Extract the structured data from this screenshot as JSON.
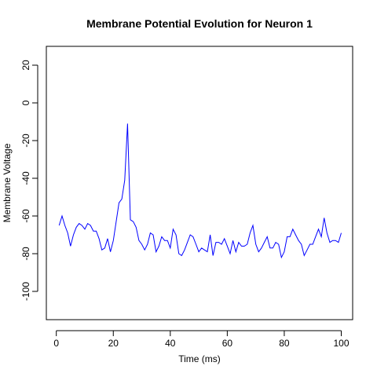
{
  "chart_data": {
    "type": "line",
    "title": "Membrane Potential Evolution for Neuron 1",
    "xlabel": "Time (ms)",
    "ylabel": "Membrane Voltage",
    "xlim": [
      -3.5,
      104
    ],
    "ylim": [
      -115,
      30
    ],
    "xticks": [
      0,
      20,
      40,
      60,
      80,
      100
    ],
    "yticks": [
      20,
      0,
      -20,
      -40,
      -60,
      -80,
      -100
    ],
    "grid": false,
    "line_color": "#0000ff",
    "series": [
      {
        "x": [
          1,
          2,
          3,
          4,
          5,
          6,
          7,
          8,
          9,
          10,
          11,
          12,
          13,
          14,
          15,
          16,
          17,
          18,
          19,
          20,
          21,
          22,
          23,
          24,
          25,
          26,
          27,
          28,
          29,
          30,
          31,
          32,
          33,
          34,
          35,
          36,
          37,
          38,
          39,
          40,
          41,
          42,
          43,
          44,
          45,
          46,
          47,
          48,
          49,
          50,
          51,
          52,
          53,
          54,
          55,
          56,
          57,
          58,
          59,
          60,
          61,
          62,
          63,
          64,
          65,
          66,
          67,
          68,
          69,
          70,
          71,
          72,
          73,
          74,
          75,
          76,
          77,
          78,
          79,
          80,
          81,
          82,
          83,
          84,
          85,
          86,
          87,
          88,
          89,
          90,
          91,
          92,
          93,
          94,
          95,
          96,
          97,
          98,
          99,
          100
        ],
        "values": [
          -65,
          -60,
          -65,
          -69,
          -76,
          -70,
          -66,
          -64,
          -65,
          -67,
          -64,
          -65,
          -68,
          -68,
          -72,
          -78,
          -77,
          -72,
          -79,
          -73,
          -63,
          -53,
          -51,
          -41,
          -11,
          -62,
          -63,
          -66,
          -73,
          -75,
          -78,
          -75,
          -69,
          -70,
          -79,
          -76,
          -71,
          -73,
          -73,
          -77,
          -67,
          -70,
          -80,
          -81,
          -78,
          -74,
          -70,
          -71,
          -75,
          -79,
          -77,
          -78,
          -79,
          -70,
          -81,
          -74,
          -74,
          -75,
          -72,
          -76,
          -80,
          -73,
          -79,
          -74,
          -76,
          -76,
          -75,
          -69,
          -65,
          -75,
          -79,
          -77,
          -74,
          -71,
          -77,
          -77,
          -74,
          -75,
          -82,
          -79,
          -71,
          -71,
          -67,
          -70,
          -73,
          -75,
          -81,
          -78,
          -75,
          -75,
          -71,
          -67,
          -71,
          -61,
          -69,
          -74,
          -73,
          -73,
          -74,
          -69
        ]
      }
    ]
  }
}
